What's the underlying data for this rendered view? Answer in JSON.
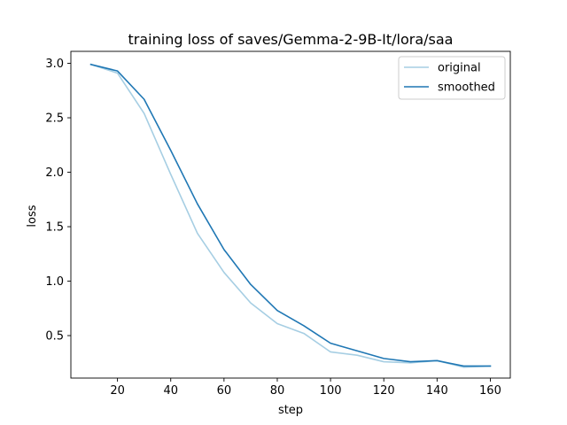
{
  "chart_data": {
    "type": "line",
    "title": "training loss of saves/Gemma-2-9B-It/lora/saa",
    "xlabel": "step",
    "ylabel": "loss",
    "xlim": [
      2.5,
      167.5
    ],
    "ylim": [
      0.11,
      3.11
    ],
    "xticks": [
      20,
      40,
      60,
      80,
      100,
      120,
      140,
      160
    ],
    "yticks": [
      0.5,
      1.0,
      1.5,
      2.0,
      2.5,
      3.0
    ],
    "ytick_labels": [
      "0.5",
      "1.0",
      "1.5",
      "2.0",
      "2.5",
      "3.0"
    ],
    "legend_position": "top-right",
    "x": [
      10,
      20,
      30,
      40,
      50,
      60,
      70,
      80,
      90,
      100,
      110,
      120,
      130,
      140,
      150,
      160
    ],
    "series": [
      {
        "name": "original",
        "color": "#a6cee3",
        "values": [
          2.99,
          2.91,
          2.54,
          1.98,
          1.44,
          1.08,
          0.8,
          0.61,
          0.52,
          0.35,
          0.32,
          0.26,
          0.25,
          0.27,
          0.21,
          0.22
        ]
      },
      {
        "name": "smoothed",
        "color": "#1f77b4",
        "values": [
          2.99,
          2.93,
          2.67,
          2.2,
          1.71,
          1.29,
          0.97,
          0.73,
          0.59,
          0.43,
          0.36,
          0.29,
          0.26,
          0.27,
          0.22,
          0.22
        ]
      }
    ]
  }
}
